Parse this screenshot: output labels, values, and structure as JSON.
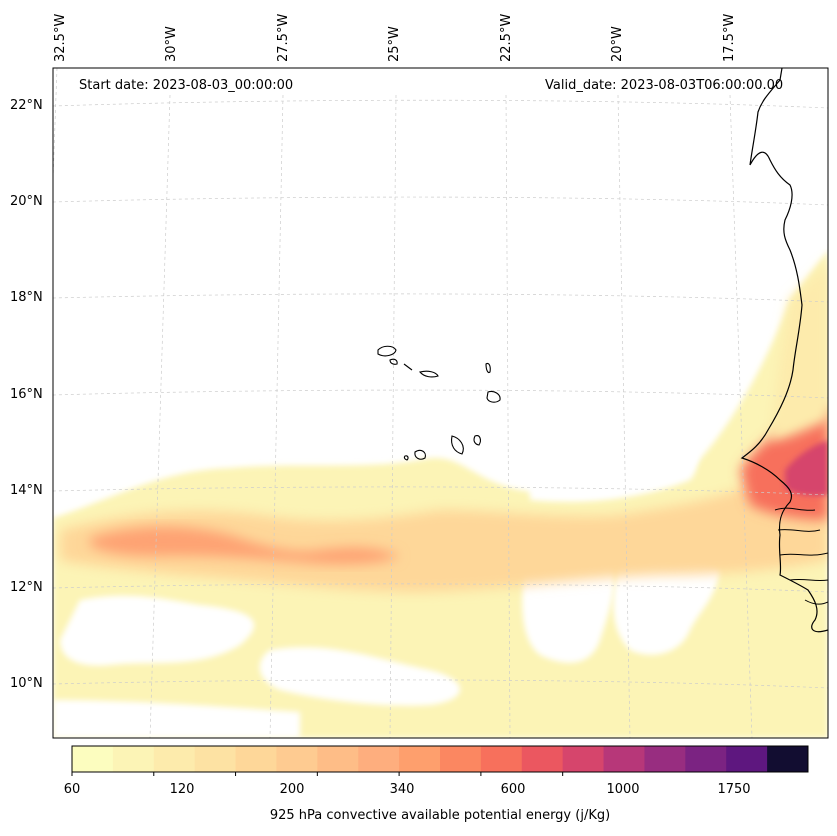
{
  "header": {
    "start_date": "Start date: 2023-08-03_00:00:00",
    "valid_date": "Valid_date: 2023-08-03T06:00:00.00"
  },
  "longitude_labels": [
    "32.5°W",
    "30°W",
    "27.5°W",
    "25°W",
    "22.5°W",
    "20°W",
    "17.5°W"
  ],
  "latitude_labels": [
    "22°N",
    "20°N",
    "18°N",
    "16°N",
    "14°N",
    "12°N",
    "10°N"
  ],
  "colorbar": {
    "label": "925 hPa convective available potential energy (j/Kg)",
    "tick_labels": [
      "60",
      "120",
      "200",
      "340",
      "600",
      "1000",
      "1750"
    ],
    "colors": [
      "#fcfdbf",
      "#fcf4b6",
      "#fdebac",
      "#fde2a3",
      "#fed799",
      "#fecb91",
      "#febd87",
      "#feae7e",
      "#fe9f6d",
      "#fb8761",
      "#f7705c",
      "#eb5760",
      "#d6456c",
      "#b73779",
      "#982d80",
      "#7b2382",
      "#5e177f",
      "#120d31"
    ]
  },
  "legend_colors": {
    "land_outline": "#000000",
    "gridline": "#cccccc"
  }
}
